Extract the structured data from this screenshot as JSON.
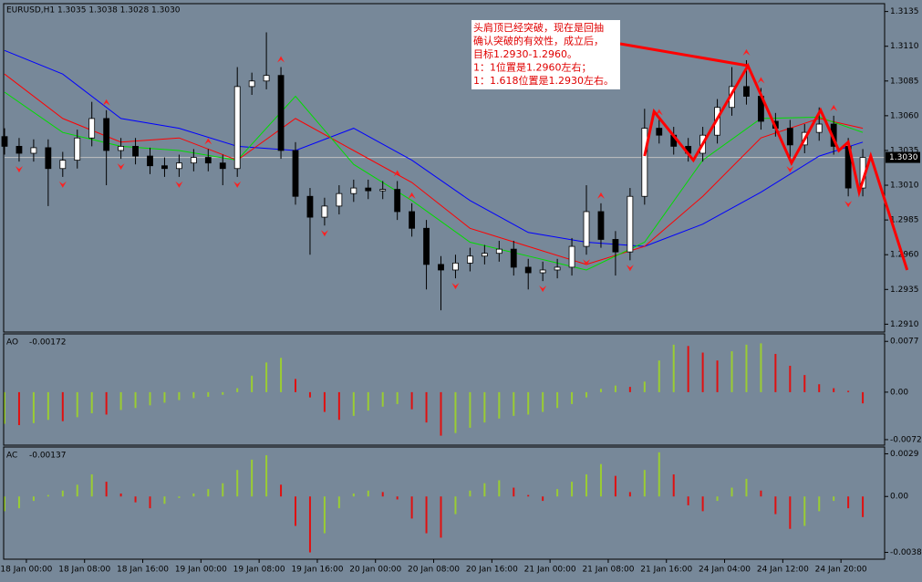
{
  "chart_data": [
    {
      "type": "candlestick",
      "title": "EURUSD,H1  1.3035 1.3038 1.3028 1.3030",
      "x": [
        -3,
        -1,
        1,
        3,
        5,
        7,
        9,
        11,
        13,
        15,
        17,
        19,
        21,
        23,
        25,
        27,
        29,
        31,
        33,
        35,
        37,
        39,
        41,
        43,
        45,
        47,
        49,
        51,
        53,
        55,
        57,
        59,
        61,
        63,
        65,
        67,
        69,
        71,
        73,
        75,
        77,
        79,
        81,
        83,
        85,
        87,
        89,
        91,
        93,
        95,
        97,
        99,
        101,
        103,
        105,
        107,
        109,
        111,
        113,
        115
      ],
      "open": [
        1.3045,
        1.3038,
        1.3033,
        1.3037,
        1.3022,
        1.3028,
        1.3044,
        1.3058,
        1.3035,
        1.3038,
        1.3031,
        1.3024,
        1.3022,
        1.3026,
        1.303,
        1.3026,
        1.3022,
        1.3081,
        1.3085,
        1.3089,
        1.3035,
        1.3002,
        1.2987,
        1.2995,
        1.3004,
        1.3008,
        1.3006,
        1.3007,
        1.2991,
        1.2979,
        1.2953,
        1.2949,
        1.2954,
        1.2959,
        1.2961,
        1.2964,
        1.2951,
        1.2947,
        1.2949,
        1.2951,
        1.2966,
        1.2991,
        1.2971,
        1.2962,
        1.3002,
        1.3051,
        1.3046,
        1.3038,
        1.3033,
        1.3046,
        1.3066,
        1.3081,
        1.3074,
        1.3056,
        1.3051,
        1.3039,
        1.3048,
        1.3054,
        1.3038,
        1.3008
      ],
      "high": [
        1.3051,
        1.3044,
        1.3043,
        1.3043,
        1.3034,
        1.305,
        1.307,
        1.3064,
        1.3044,
        1.3044,
        1.3037,
        1.303,
        1.3032,
        1.3036,
        1.3036,
        1.3032,
        1.3095,
        1.3091,
        1.312,
        1.3095,
        1.3041,
        1.3008,
        1.3001,
        1.301,
        1.3014,
        1.3014,
        1.3013,
        1.3013,
        1.2997,
        1.2985,
        1.2959,
        1.296,
        1.2965,
        1.2967,
        1.297,
        1.297,
        1.2957,
        1.2955,
        1.2957,
        1.2972,
        1.301,
        1.2997,
        1.2977,
        1.3008,
        1.3065,
        1.3057,
        1.3052,
        1.3044,
        1.3052,
        1.3072,
        1.3095,
        1.31,
        1.308,
        1.3062,
        1.3057,
        1.3054,
        1.3066,
        1.306,
        1.3044,
        1.3036
      ],
      "low": [
        1.3032,
        1.3027,
        1.3027,
        1.2995,
        1.3016,
        1.3022,
        1.3038,
        1.301,
        1.3029,
        1.3025,
        1.3018,
        1.3016,
        1.3016,
        1.302,
        1.302,
        1.301,
        1.3016,
        1.3075,
        1.3079,
        1.3029,
        1.2996,
        1.296,
        1.2981,
        1.2989,
        1.2998,
        1.3,
        1.3,
        1.2985,
        1.2973,
        1.2935,
        1.292,
        1.2943,
        1.2948,
        1.2953,
        1.2955,
        1.2945,
        1.2935,
        1.2941,
        1.2943,
        1.2945,
        1.296,
        1.2965,
        1.2945,
        1.2956,
        1.2996,
        1.304,
        1.3032,
        1.3027,
        1.3027,
        1.304,
        1.306,
        1.3068,
        1.305,
        1.3045,
        1.3027,
        1.3033,
        1.3042,
        1.3032,
        1.3002,
        1.3002
      ],
      "close": [
        1.3038,
        1.3033,
        1.3037,
        1.3022,
        1.3028,
        1.3044,
        1.3058,
        1.3035,
        1.3038,
        1.3031,
        1.3024,
        1.3022,
        1.3026,
        1.303,
        1.3026,
        1.3022,
        1.3081,
        1.3085,
        1.3089,
        1.3035,
        1.3002,
        1.2987,
        1.2995,
        1.3004,
        1.3008,
        1.3006,
        1.3007,
        1.2991,
        1.2979,
        1.2953,
        1.2949,
        1.2954,
        1.2959,
        1.2961,
        1.2964,
        1.2951,
        1.2947,
        1.2949,
        1.2951,
        1.2966,
        1.2991,
        1.2971,
        1.2962,
        1.3002,
        1.3051,
        1.3046,
        1.3038,
        1.3033,
        1.3046,
        1.3066,
        1.3081,
        1.3074,
        1.3056,
        1.3051,
        1.3039,
        1.3048,
        1.3054,
        1.3038,
        1.3008,
        1.303
      ],
      "up_color": "#ffffff",
      "down_color": "#000000",
      "series": [
        {
          "color": "#0000ff",
          "x": [
            -3,
            5,
            13,
            21,
            29,
            37,
            45,
            53,
            61,
            69,
            77,
            85,
            93,
            101,
            109,
            115
          ],
          "values": [
            1.3107,
            1.309,
            1.3058,
            1.3051,
            1.3038,
            1.3035,
            1.3051,
            1.3028,
            1.2999,
            1.2976,
            1.2969,
            1.2966,
            1.2982,
            1.3005,
            1.3031,
            1.3041
          ]
        },
        {
          "color": "#ff0000",
          "x": [
            -3,
            5,
            13,
            21,
            29,
            37,
            45,
            53,
            61,
            69,
            77,
            85,
            93,
            101,
            109,
            115
          ],
          "values": [
            1.309,
            1.3058,
            1.3041,
            1.3044,
            1.3028,
            1.3058,
            1.3035,
            1.3012,
            1.2979,
            1.2966,
            1.2953,
            1.2966,
            1.3002,
            1.3044,
            1.3058,
            1.3051
          ]
        },
        {
          "color": "#00dd00",
          "x": [
            -3,
            5,
            13,
            21,
            29,
            37,
            45,
            53,
            61,
            69,
            77,
            85,
            93,
            101,
            109,
            115
          ],
          "values": [
            1.3077,
            1.3048,
            1.3038,
            1.3035,
            1.3028,
            1.3074,
            1.3025,
            1.2999,
            1.2969,
            1.2959,
            1.2949,
            1.2969,
            1.3028,
            1.3058,
            1.3059,
            1.3048
          ]
        }
      ],
      "fractals": {
        "color": "#ff2020",
        "up": [
          11,
          25,
          35,
          51,
          53,
          79,
          87,
          99,
          101,
          111
        ],
        "down": [
          -1,
          5,
          13,
          21,
          29,
          41,
          59,
          71,
          77,
          83,
          105,
          113
        ]
      },
      "zigzag": {
        "color": "#ff0000",
        "x": [
          85.0,
          86.3,
          91.7,
          99.2,
          105.2,
          109.2,
          111.7,
          113,
          114.5,
          116.1,
          121.1
        ],
        "y": [
          1.3031,
          1.3063,
          1.3028,
          1.3096,
          1.3026,
          1.3064,
          1.3035,
          1.3041,
          1.3005,
          1.3031,
          1.2949
        ]
      },
      "annotation": [
        "头肩顶已经突破，现在是回抽",
        "确认突破的有效性，成立后，",
        "目标1.2930-1.2960。",
        "1：1位置是1.2960左右；",
        "1：1.618位置是1.2930左右。"
      ],
      "last_price": {
        "value": 1.303,
        "label": "1.3030"
      },
      "xlim": [
        -3,
        118
      ],
      "ylim": [
        1.2905,
        1.314
      ],
      "yticks": [
        1.3135,
        {
          "value": 1.311,
          "label": "1.3110"
        },
        1.3085,
        {
          "value": 1.306,
          "label": "1.3060"
        },
        1.3035,
        {
          "value": 1.301,
          "label": "1.3010"
        },
        1.2985,
        {
          "value": 1.296,
          "label": "1.2960"
        },
        1.2935,
        {
          "value": 1.291,
          "label": "1.2910"
        }
      ],
      "xticks": [
        {
          "value": 0,
          "label": "18 Jan 00:00"
        },
        {
          "value": 8,
          "label": "18 Jan 08:00"
        },
        {
          "value": 16,
          "label": "18 Jan 16:00"
        },
        {
          "value": 24,
          "label": "19 Jan 00:00"
        },
        {
          "value": 32,
          "label": "19 Jan 08:00"
        },
        {
          "value": 40,
          "label": "19 Jan 16:00"
        },
        {
          "value": 48,
          "label": "20 Jan 00:00"
        },
        {
          "value": 56,
          "label": "20 Jan 08:00"
        },
        {
          "value": 64,
          "label": "20 Jan 16:00"
        },
        {
          "value": 72,
          "label": "21 Jan 00:00"
        },
        {
          "value": 80,
          "label": "21 Jan 08:00"
        },
        {
          "value": 88,
          "label": "21 Jan 16:00"
        },
        {
          "value": 96,
          "label": "24 Jan 04:00"
        },
        {
          "value": 104,
          "label": "24 Jan 12:00"
        },
        {
          "value": 112,
          "label": "24 Jan 20:00"
        }
      ]
    },
    {
      "type": "bar",
      "name": "AO",
      "current": -0.00172,
      "values": [
        -0.0048,
        -0.005,
        -0.0047,
        -0.0042,
        -0.0044,
        -0.0038,
        -0.0032,
        -0.0034,
        -0.0027,
        -0.0024,
        -0.002,
        -0.0016,
        -0.0012,
        -0.0009,
        -0.0007,
        -0.0004,
        0.0006,
        0.0025,
        0.0045,
        0.0052,
        0.002,
        -0.0008,
        -0.003,
        -0.0042,
        -0.0036,
        -0.0028,
        -0.0022,
        -0.0018,
        -0.0026,
        -0.0046,
        -0.0066,
        -0.0062,
        -0.0054,
        -0.0046,
        -0.004,
        -0.0036,
        -0.0034,
        -0.003,
        -0.0024,
        -0.0018,
        -0.0008,
        0.0005,
        0.001,
        0.0008,
        0.0016,
        0.0048,
        0.0072,
        0.007,
        0.006,
        0.0048,
        0.0062,
        0.0072,
        0.0074,
        0.0058,
        0.004,
        0.0026,
        0.0012,
        0.0006,
        0.0002,
        -0.0017
      ],
      "up_color": "#9acd32",
      "down_color": "#e01010",
      "ylim": [
        -0.0079,
        0.0087
      ],
      "yticks": [
        0.0077,
        {
          "value": 0,
          "label": "0.00"
        },
        -0.0072
      ]
    },
    {
      "type": "bar",
      "name": "AC",
      "current": -0.00137,
      "values": [
        -0.001,
        -0.0008,
        -0.0003,
        0.0001,
        0.0004,
        0.0008,
        0.0015,
        0.001,
        0.0002,
        -0.0004,
        -0.0008,
        -0.0005,
        -0.0001,
        0.0002,
        0.0005,
        0.0009,
        0.0018,
        0.0025,
        0.0028,
        0.0008,
        -0.002,
        -0.0038,
        -0.0025,
        -0.0008,
        0.0002,
        0.0004,
        0.0003,
        -0.0002,
        -0.0015,
        -0.0025,
        -0.0028,
        -0.0012,
        0.0004,
        0.0009,
        0.0011,
        0.0006,
        0.0001,
        -0.0003,
        0.0005,
        0.001,
        0.0015,
        0.0022,
        0.0014,
        0.0003,
        0.0018,
        0.003,
        0.0015,
        -0.0006,
        -0.001,
        -0.0003,
        0.0006,
        0.0012,
        0.0004,
        -0.0012,
        -0.0022,
        -0.002,
        -0.001,
        -0.0003,
        -0.0008,
        -0.0014
      ],
      "up_color": "#9acd32",
      "down_color": "#e01010",
      "ylim": [
        -0.0042,
        0.0033
      ],
      "yticks": [
        0.0029,
        {
          "value": 0,
          "label": "0.00"
        },
        -0.0038
      ]
    }
  ]
}
